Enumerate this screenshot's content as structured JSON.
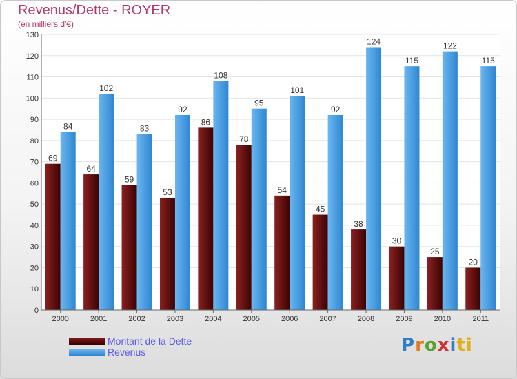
{
  "header": {
    "title": "Revenus/Dette - ROYER",
    "subtitle": "(en milliers d'€)"
  },
  "legend": {
    "debt_label": "Montant de la Dette",
    "revenue_label": "Revenus"
  },
  "logo": {
    "text": "Proxiti",
    "letters": [
      "P",
      "r",
      "o",
      "x",
      "i",
      "ti"
    ]
  },
  "colors": {
    "debt": "#5a0a0a",
    "revenue": "#3d9be0",
    "title": "#b2386a"
  },
  "chart_data": {
    "type": "bar",
    "title": "Revenus/Dette - ROYER",
    "subtitle": "(en milliers d'€)",
    "categories": [
      "2000",
      "2001",
      "2002",
      "2003",
      "2004",
      "2005",
      "2006",
      "2007",
      "2008",
      "2009",
      "2010",
      "2011"
    ],
    "series": [
      {
        "name": "Montant de la Dette",
        "values": [
          69,
          64,
          59,
          53,
          86,
          78,
          54,
          45,
          38,
          30,
          25,
          20
        ]
      },
      {
        "name": "Revenus",
        "values": [
          84,
          102,
          83,
          92,
          108,
          95,
          101,
          92,
          124,
          115,
          122,
          115
        ]
      }
    ],
    "ylim": [
      0,
      130
    ],
    "yticks": [
      0,
      10,
      20,
      30,
      40,
      50,
      60,
      70,
      80,
      90,
      100,
      110,
      120,
      130
    ],
    "grid": true,
    "legend_position": "bottom-left"
  }
}
